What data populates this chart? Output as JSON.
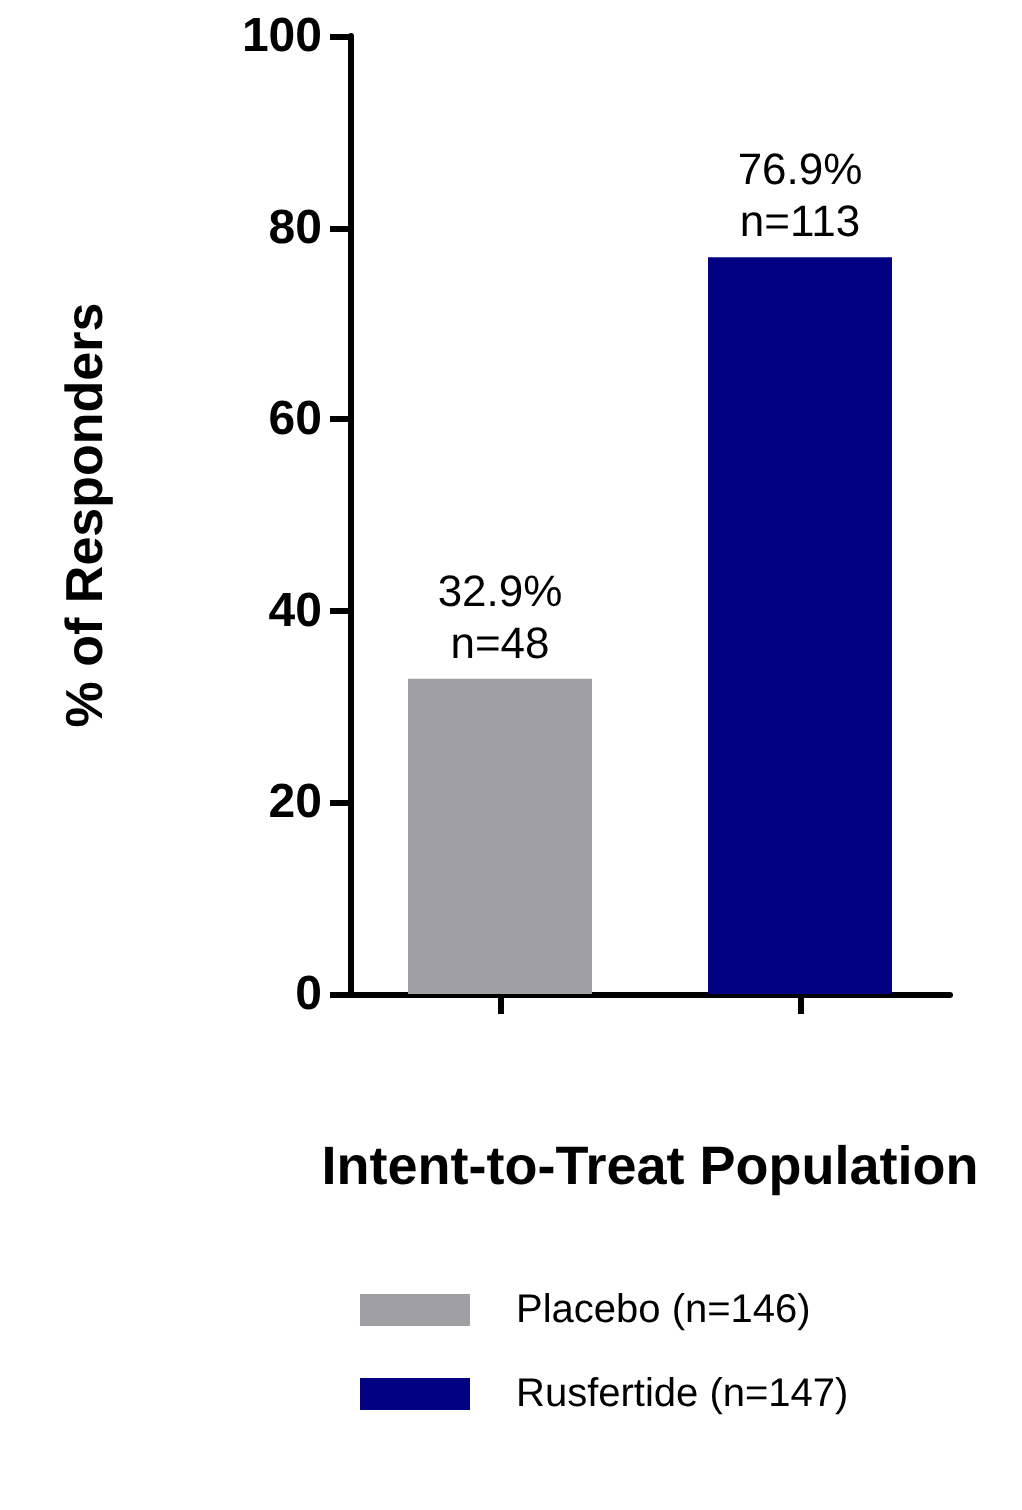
{
  "chart_data": {
    "type": "bar",
    "ylabel": "% of Responders",
    "xlabel": "Intent-to-Treat Population",
    "categories": [
      null,
      null
    ],
    "series": [
      {
        "name": "Placebo (n=146)",
        "color": "#a0a0a4",
        "values": [
          32.9,
          null
        ],
        "value_labels": [
          "32.9%\nn=48",
          null
        ]
      },
      {
        "name": "Rusfertide (n=147)",
        "color": "#000080",
        "values": [
          null,
          76.9
        ],
        "value_labels": [
          null,
          "76.9%\nn=113"
        ]
      }
    ],
    "ylim": [
      0,
      100
    ],
    "yticks": [
      0,
      20,
      40,
      60,
      80,
      100
    ],
    "grid": false,
    "legend": "bottom"
  }
}
